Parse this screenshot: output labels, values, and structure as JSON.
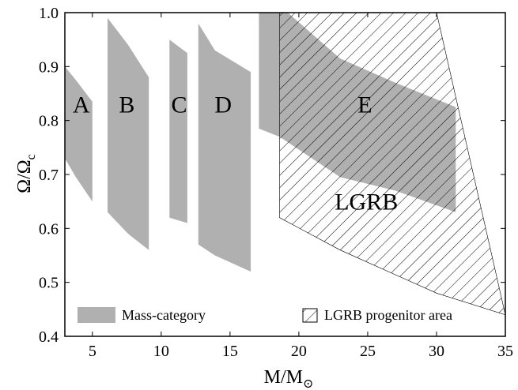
{
  "chart_data": {
    "type": "area",
    "xlabel_main": "M/M",
    "xlabel_sub": "⊙",
    "ylabel_main": "Ω/Ω",
    "ylabel_sub": "c",
    "xlim": [
      3,
      35
    ],
    "ylim": [
      0.4,
      1.0
    ],
    "xticks": [
      5,
      10,
      15,
      20,
      25,
      30,
      35
    ],
    "xtick_labels": [
      "5",
      "10",
      "15",
      "20",
      "25",
      "30",
      "35"
    ],
    "yticks": [
      0.4,
      0.5,
      0.6,
      0.7,
      0.8,
      0.9,
      1.0
    ],
    "ytick_labels": [
      "0.4",
      "0.5",
      "0.6",
      "0.7",
      "0.8",
      "0.9",
      "1.0"
    ],
    "colors": {
      "mass": "#b0b0b0",
      "hatch": "#000000"
    },
    "regions": [
      {
        "label": "A",
        "label_at": [
          4.2,
          0.815
        ],
        "polygon": [
          [
            3,
            0.9
          ],
          [
            3.8,
            0.875
          ],
          [
            5,
            0.835
          ],
          [
            5,
            0.65
          ],
          [
            3.8,
            0.695
          ],
          [
            3,
            0.73
          ]
        ]
      },
      {
        "label": "B",
        "label_at": [
          7.5,
          0.815
        ],
        "polygon": [
          [
            6.1,
            0.99
          ],
          [
            7.6,
            0.94
          ],
          [
            9.1,
            0.88
          ],
          [
            9.1,
            0.56
          ],
          [
            7.6,
            0.59
          ],
          [
            6.1,
            0.63
          ]
        ]
      },
      {
        "label": "C",
        "label_at": [
          11.3,
          0.815
        ],
        "polygon": [
          [
            10.6,
            0.95
          ],
          [
            11.9,
            0.925
          ],
          [
            11.9,
            0.61
          ],
          [
            10.6,
            0.62
          ]
        ]
      },
      {
        "label": "D",
        "label_at": [
          14.5,
          0.815
        ],
        "polygon": [
          [
            12.7,
            0.98
          ],
          [
            13.9,
            0.93
          ],
          [
            16.5,
            0.89
          ],
          [
            16.5,
            0.52
          ],
          [
            13.9,
            0.55
          ],
          [
            12.7,
            0.57
          ]
        ]
      },
      {
        "label": "E",
        "label_at": [
          24.8,
          0.815
        ],
        "polygon": [
          [
            17.1,
            1.0
          ],
          [
            19.2,
            1.0
          ],
          [
            23,
            0.915
          ],
          [
            27,
            0.87
          ],
          [
            31.4,
            0.825
          ],
          [
            31.4,
            0.63
          ],
          [
            27,
            0.67
          ],
          [
            23,
            0.695
          ],
          [
            18.6,
            0.77
          ],
          [
            17.1,
            0.785
          ]
        ]
      }
    ],
    "hatched_regions": [
      {
        "label": "LGRB",
        "label_at": [
          24.9,
          0.635
        ],
        "polygon": [
          [
            18.6,
            1.0
          ],
          [
            30,
            1.0
          ],
          [
            35,
            0.44
          ],
          [
            30,
            0.48
          ],
          [
            23,
            0.56
          ],
          [
            18.6,
            0.62
          ]
        ]
      }
    ],
    "legend": {
      "position": "bottom",
      "entries": [
        {
          "kind": "filled",
          "label": "Mass-category"
        },
        {
          "kind": "hatched",
          "label": "LGRB progenitor area"
        }
      ]
    }
  }
}
